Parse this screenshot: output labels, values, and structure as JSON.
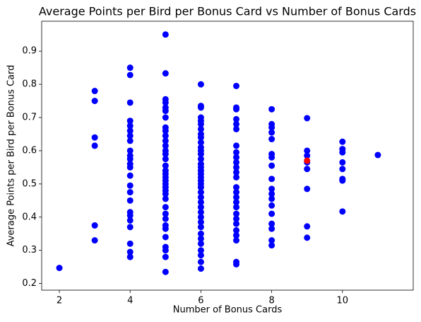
{
  "chart_data": {
    "type": "scatter",
    "title": "Average Points per Bird per Bonus Card vs Number of Bonus Cards",
    "x_label": "Number of Bonus Cards",
    "y_label": "Average Points per Bird per Bonus Card",
    "xlim": [
      1.5,
      12.0
    ],
    "ylim": [
      0.18,
      0.99
    ],
    "xticks": [
      2,
      4,
      6,
      8,
      10
    ],
    "yticks": [
      0.2,
      0.3,
      0.4,
      0.5,
      0.6,
      0.7,
      0.8,
      0.9
    ],
    "grid": false,
    "series": [
      {
        "color": "#0000ff",
        "x": [
          2,
          3,
          3,
          3,
          3,
          3,
          3,
          4,
          4,
          4,
          4,
          4,
          4,
          4,
          4,
          4,
          4,
          4,
          4,
          4,
          4,
          4,
          4,
          4,
          4,
          4,
          4,
          4,
          4,
          4,
          4,
          5,
          5,
          5,
          5,
          5,
          5,
          5,
          5,
          5,
          5,
          5,
          5,
          5,
          5,
          5,
          5,
          5,
          5,
          5,
          5,
          5,
          5,
          5,
          5,
          5,
          5,
          5,
          5,
          5,
          5,
          5,
          5,
          5,
          5,
          5,
          6,
          6,
          6,
          6,
          6,
          6,
          6,
          6,
          6,
          6,
          6,
          6,
          6,
          6,
          6,
          6,
          6,
          6,
          6,
          6,
          6,
          6,
          6,
          6,
          6,
          6,
          6,
          6,
          6,
          6,
          6,
          6,
          6,
          6,
          6,
          6,
          6,
          7,
          7,
          7,
          7,
          7,
          7,
          7,
          7,
          7,
          7,
          7,
          7,
          7,
          7,
          7,
          7,
          7,
          7,
          7,
          7,
          7,
          7,
          7,
          7,
          7,
          7,
          8,
          8,
          8,
          8,
          8,
          8,
          8,
          8,
          8,
          8,
          8,
          8,
          8,
          8,
          8,
          8,
          8,
          8,
          9,
          9,
          9,
          9,
          9,
          9,
          9,
          9,
          10,
          10,
          10,
          10,
          10,
          10,
          10,
          10,
          11
        ],
        "values": [
          0.247,
          0.78,
          0.75,
          0.64,
          0.615,
          0.375,
          0.33,
          0.85,
          0.828,
          0.745,
          0.69,
          0.675,
          0.66,
          0.645,
          0.63,
          0.6,
          0.585,
          0.575,
          0.56,
          0.55,
          0.525,
          0.495,
          0.475,
          0.45,
          0.415,
          0.405,
          0.39,
          0.37,
          0.32,
          0.295,
          0.28,
          0.95,
          0.833,
          0.755,
          0.745,
          0.73,
          0.72,
          0.7,
          0.67,
          0.66,
          0.645,
          0.63,
          0.615,
          0.6,
          0.59,
          0.575,
          0.555,
          0.54,
          0.53,
          0.52,
          0.51,
          0.5,
          0.49,
          0.48,
          0.47,
          0.455,
          0.43,
          0.41,
          0.395,
          0.375,
          0.365,
          0.34,
          0.31,
          0.3,
          0.28,
          0.235,
          0.8,
          0.735,
          0.73,
          0.7,
          0.69,
          0.68,
          0.665,
          0.65,
          0.64,
          0.625,
          0.61,
          0.6,
          0.59,
          0.575,
          0.56,
          0.55,
          0.54,
          0.53,
          0.52,
          0.51,
          0.5,
          0.49,
          0.475,
          0.46,
          0.445,
          0.43,
          0.415,
          0.4,
          0.385,
          0.37,
          0.35,
          0.335,
          0.32,
          0.3,
          0.285,
          0.265,
          0.245,
          0.795,
          0.73,
          0.725,
          0.695,
          0.68,
          0.665,
          0.615,
          0.595,
          0.58,
          0.565,
          0.55,
          0.535,
          0.52,
          0.49,
          0.475,
          0.46,
          0.445,
          0.43,
          0.41,
          0.395,
          0.38,
          0.36,
          0.345,
          0.33,
          0.265,
          0.258,
          0.725,
          0.68,
          0.67,
          0.655,
          0.635,
          0.59,
          0.58,
          0.555,
          0.515,
          0.485,
          0.47,
          0.455,
          0.435,
          0.41,
          0.38,
          0.365,
          0.33,
          0.315,
          0.698,
          0.6,
          0.585,
          0.565,
          0.545,
          0.485,
          0.372,
          0.338,
          0.627,
          0.605,
          0.595,
          0.565,
          0.545,
          0.515,
          0.51,
          0.417,
          0.587
        ]
      },
      {
        "color": "#ff0000",
        "x": [
          9
        ],
        "values": [
          0.57
        ]
      }
    ]
  }
}
